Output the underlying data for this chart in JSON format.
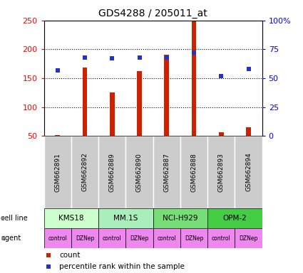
{
  "title": "GDS4288 / 205011_at",
  "samples": [
    "GSM662891",
    "GSM662892",
    "GSM662889",
    "GSM662890",
    "GSM662887",
    "GSM662888",
    "GSM662893",
    "GSM662894"
  ],
  "count_values": [
    52,
    168,
    125,
    162,
    191,
    250,
    57,
    65
  ],
  "percentile_values": [
    57,
    68,
    67,
    68,
    68,
    72,
    52,
    58
  ],
  "cell_lines": [
    {
      "name": "KMS18",
      "start": 0,
      "end": 2,
      "color": "#ccffcc"
    },
    {
      "name": "MM.1S",
      "start": 2,
      "end": 4,
      "color": "#aaeebb"
    },
    {
      "name": "NCI-H929",
      "start": 4,
      "end": 6,
      "color": "#77dd77"
    },
    {
      "name": "OPM-2",
      "start": 6,
      "end": 8,
      "color": "#44cc44"
    }
  ],
  "agents": [
    "control",
    "DZNep",
    "control",
    "DZNep",
    "control",
    "DZNep",
    "control",
    "DZNep"
  ],
  "agent_color": "#ee88ee",
  "sample_box_color": "#cccccc",
  "bar_color": "#cc2200",
  "dot_color": "#2233cc",
  "ylim_left": [
    50,
    250
  ],
  "ylim_right": [
    0,
    100
  ],
  "yticks_left": [
    50,
    100,
    150,
    200,
    250
  ],
  "yticks_right": [
    0,
    25,
    50,
    75,
    100
  ],
  "yticklabels_right": [
    "0",
    "25",
    "50",
    "75",
    "100%"
  ],
  "grid_values": [
    100,
    150,
    200
  ],
  "background_color": "#ffffff"
}
